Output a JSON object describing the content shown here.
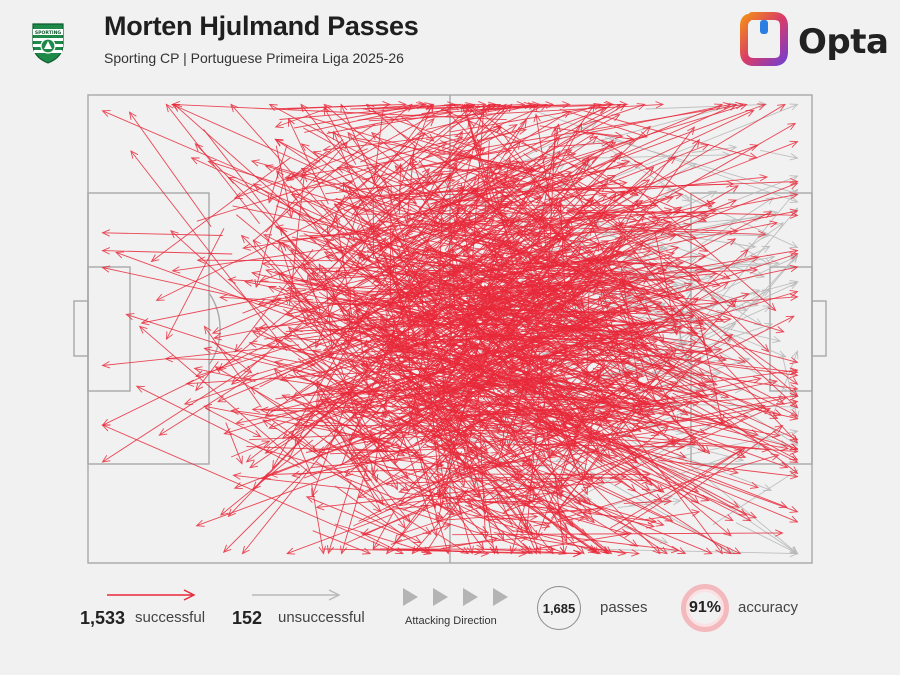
{
  "header": {
    "title": "Morten Hjulmand Passes",
    "subtitle": "Sporting CP | Portuguese Primeira Liga 2025-26",
    "brand": "Opta",
    "crest_text": "SPORTING"
  },
  "colors": {
    "successful": "#e8293a",
    "unsuccessful": "#b9b9b9",
    "pitch_lines": "#a8a8a8",
    "accuracy_ring": "#f3b9bd"
  },
  "legend": {
    "successful_count": "1,533",
    "successful_label": "successful",
    "unsuccessful_count": "152",
    "unsuccessful_label": "unsuccessful",
    "direction_label": "Attacking Direction",
    "passes_count": "1,685",
    "passes_label": "passes",
    "accuracy_value": "91%",
    "accuracy_label": "accuracy"
  },
  "chart_data": {
    "type": "pass_map",
    "pitch_x_range": [
      0,
      100
    ],
    "pitch_y_range": [
      0,
      100
    ],
    "attacking_direction": "left-to-right",
    "series": [
      {
        "name": "successful",
        "count": 1533
      },
      {
        "name": "unsuccessful",
        "count": 152
      }
    ],
    "total_passes": 1685,
    "accuracy_pct": 91
  }
}
